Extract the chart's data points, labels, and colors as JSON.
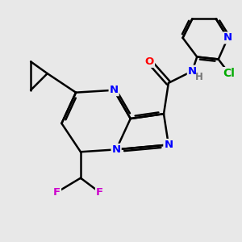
{
  "background_color": "#e8e8e8",
  "atom_colors": {
    "N": "#0000ff",
    "O": "#ff0000",
    "F": "#cc00cc",
    "Cl": "#00aa00",
    "C": "#000000",
    "H": "#777777"
  },
  "bond_color": "#000000",
  "bond_width": 1.8
}
